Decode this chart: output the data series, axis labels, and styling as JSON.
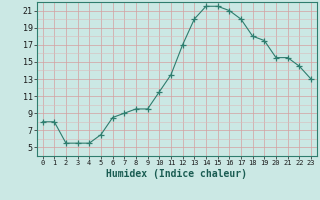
{
  "x": [
    0,
    1,
    2,
    3,
    4,
    5,
    6,
    7,
    8,
    9,
    10,
    11,
    12,
    13,
    14,
    15,
    16,
    17,
    18,
    19,
    20,
    21,
    22,
    23
  ],
  "y": [
    8,
    8,
    5.5,
    5.5,
    5.5,
    6.5,
    8.5,
    9,
    9.5,
    9.5,
    11.5,
    13.5,
    17,
    20,
    21.5,
    21.5,
    21,
    20,
    18,
    17.5,
    15.5,
    15.5,
    14.5,
    13
  ],
  "line_color": "#2e7d6e",
  "marker": "+",
  "marker_size": 4,
  "bg_color": "#cbe8e4",
  "grid_major_color": "#d4a0a0",
  "grid_minor_color": "#dbbcbc",
  "xlabel": "Humidex (Indice chaleur)",
  "ylim": [
    4,
    22
  ],
  "xlim": [
    -0.5,
    23.5
  ],
  "yticks": [
    5,
    7,
    9,
    11,
    13,
    15,
    17,
    19,
    21
  ],
  "xticks": [
    0,
    1,
    2,
    3,
    4,
    5,
    6,
    7,
    8,
    9,
    10,
    11,
    12,
    13,
    14,
    15,
    16,
    17,
    18,
    19,
    20,
    21,
    22,
    23
  ],
  "label_fontsize": 7,
  "tick_fontsize": 6
}
